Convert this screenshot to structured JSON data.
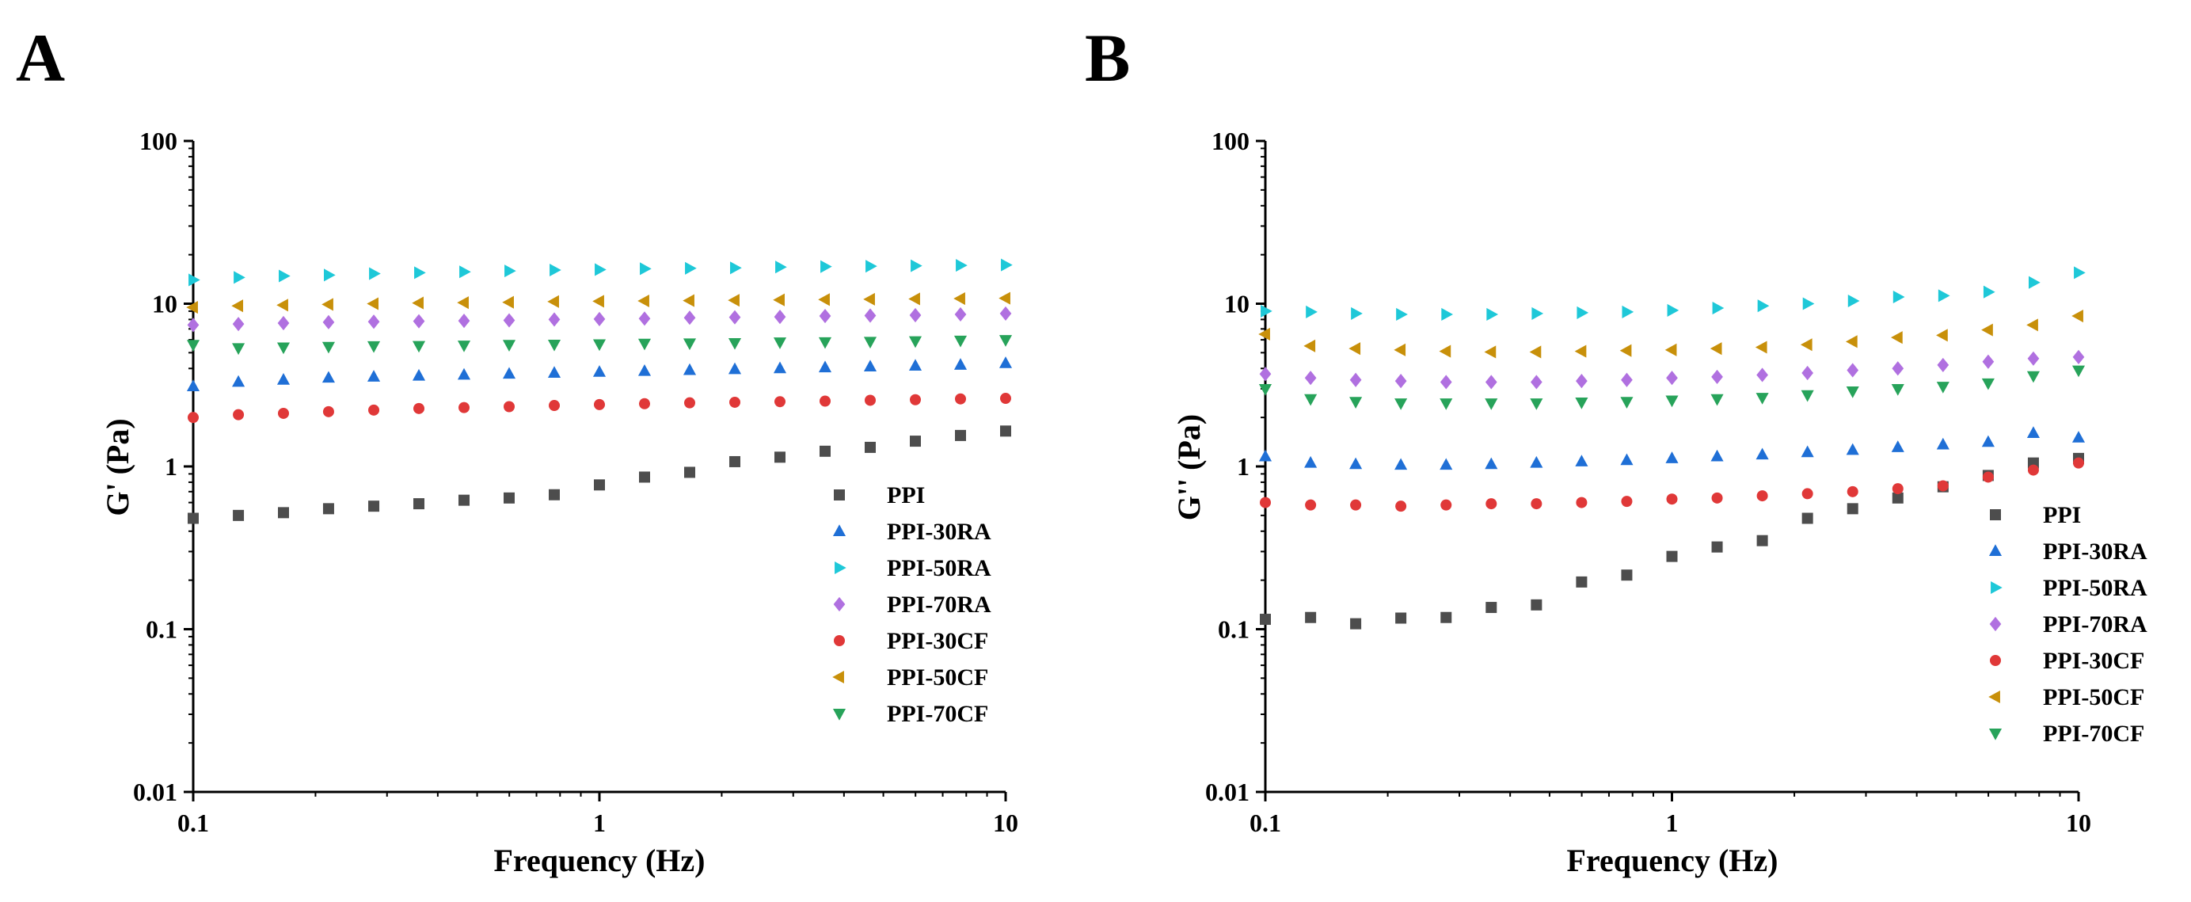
{
  "chart_data": [
    {
      "panel": "A",
      "type": "scatter",
      "xlabel": "Frequency (Hz)",
      "ylabel": "G' (Pa)",
      "xscale": "log",
      "yscale": "log",
      "xlim": [
        0.1,
        10
      ],
      "ylim": [
        0.01,
        100
      ],
      "x_ticks": [
        "0.1",
        "1",
        "10"
      ],
      "y_ticks": [
        "0.01",
        "0.1",
        "1",
        "10",
        "100"
      ],
      "legend_position": "bottom-right",
      "x": [
        0.1,
        0.1292,
        0.1668,
        0.2154,
        0.2783,
        0.3594,
        0.4642,
        0.5995,
        0.7743,
        1.0,
        1.2915,
        1.6681,
        2.1544,
        2.7826,
        3.5938,
        4.6416,
        5.9948,
        7.7426,
        10.0
      ],
      "series": [
        {
          "name": "PPI",
          "marker": "square",
          "color": "#4d4d4d",
          "values": [
            0.48,
            0.5,
            0.52,
            0.55,
            0.57,
            0.59,
            0.62,
            0.64,
            0.67,
            0.77,
            0.86,
            0.92,
            1.07,
            1.14,
            1.24,
            1.31,
            1.43,
            1.55,
            1.65
          ]
        },
        {
          "name": "PPI-30RA",
          "marker": "triangle-up",
          "color": "#1f6fd6",
          "values": [
            3.1,
            3.3,
            3.4,
            3.5,
            3.55,
            3.6,
            3.65,
            3.7,
            3.75,
            3.8,
            3.85,
            3.9,
            3.95,
            4.0,
            4.05,
            4.1,
            4.15,
            4.2,
            4.3
          ]
        },
        {
          "name": "PPI-50RA",
          "marker": "triangle-right",
          "color": "#1ec8d8",
          "values": [
            14.0,
            14.5,
            14.8,
            15.0,
            15.3,
            15.5,
            15.7,
            15.9,
            16.1,
            16.2,
            16.4,
            16.5,
            16.6,
            16.8,
            16.9,
            17.0,
            17.1,
            17.2,
            17.3
          ]
        },
        {
          "name": "PPI-70RA",
          "marker": "diamond",
          "color": "#b070e0",
          "values": [
            7.4,
            7.5,
            7.6,
            7.7,
            7.75,
            7.8,
            7.85,
            7.9,
            8.0,
            8.05,
            8.1,
            8.2,
            8.25,
            8.3,
            8.4,
            8.45,
            8.5,
            8.6,
            8.7
          ]
        },
        {
          "name": "PPI-30CF",
          "marker": "circle",
          "color": "#e03838",
          "values": [
            2.0,
            2.08,
            2.12,
            2.17,
            2.22,
            2.27,
            2.3,
            2.33,
            2.37,
            2.4,
            2.43,
            2.46,
            2.48,
            2.5,
            2.52,
            2.55,
            2.57,
            2.6,
            2.62
          ]
        },
        {
          "name": "PPI-50CF",
          "marker": "triangle-left",
          "color": "#c8900a",
          "values": [
            9.5,
            9.7,
            9.8,
            9.9,
            10.0,
            10.1,
            10.15,
            10.2,
            10.3,
            10.35,
            10.4,
            10.45,
            10.5,
            10.55,
            10.6,
            10.65,
            10.7,
            10.75,
            10.8
          ]
        },
        {
          "name": "PPI-70CF",
          "marker": "triangle-down",
          "color": "#27a35a",
          "values": [
            5.6,
            5.35,
            5.4,
            5.45,
            5.5,
            5.52,
            5.55,
            5.6,
            5.62,
            5.65,
            5.7,
            5.72,
            5.75,
            5.8,
            5.82,
            5.85,
            5.9,
            5.95,
            6.0
          ]
        }
      ]
    },
    {
      "panel": "B",
      "type": "scatter",
      "xlabel": "Frequency (Hz)",
      "ylabel": "G'' (Pa)",
      "xscale": "log",
      "yscale": "log",
      "xlim": [
        0.1,
        10
      ],
      "ylim": [
        0.01,
        100
      ],
      "x_ticks": [
        "0.1",
        "1",
        "10"
      ],
      "y_ticks": [
        "0.01",
        "0.1",
        "1",
        "10",
        "100"
      ],
      "legend_position": "bottom-right",
      "x": [
        0.1,
        0.1292,
        0.1668,
        0.2154,
        0.2783,
        0.3594,
        0.4642,
        0.5995,
        0.7743,
        1.0,
        1.2915,
        1.6681,
        2.1544,
        2.7826,
        3.5938,
        4.6416,
        5.9948,
        7.7426,
        10.0
      ],
      "series": [
        {
          "name": "PPI",
          "marker": "square",
          "color": "#4d4d4d",
          "values": [
            0.115,
            0.118,
            0.108,
            0.117,
            0.118,
            0.136,
            0.141,
            0.195,
            0.215,
            0.28,
            0.32,
            0.35,
            0.48,
            0.55,
            0.64,
            0.75,
            0.88,
            1.05,
            1.12
          ]
        },
        {
          "name": "PPI-30RA",
          "marker": "triangle-up",
          "color": "#1f6fd6",
          "values": [
            1.15,
            1.05,
            1.03,
            1.02,
            1.02,
            1.03,
            1.05,
            1.07,
            1.09,
            1.12,
            1.15,
            1.18,
            1.22,
            1.26,
            1.31,
            1.36,
            1.41,
            1.6,
            1.5
          ]
        },
        {
          "name": "PPI-50RA",
          "marker": "triangle-right",
          "color": "#1ec8d8",
          "values": [
            9.0,
            8.9,
            8.7,
            8.6,
            8.6,
            8.6,
            8.7,
            8.8,
            8.9,
            9.1,
            9.4,
            9.7,
            10.0,
            10.4,
            11.0,
            11.2,
            11.8,
            13.5,
            15.5
          ]
        },
        {
          "name": "PPI-70RA",
          "marker": "diamond",
          "color": "#b070e0",
          "values": [
            3.7,
            3.5,
            3.4,
            3.35,
            3.3,
            3.3,
            3.3,
            3.35,
            3.4,
            3.5,
            3.55,
            3.65,
            3.75,
            3.9,
            4.0,
            4.2,
            4.4,
            4.6,
            4.7
          ]
        },
        {
          "name": "PPI-30CF",
          "marker": "circle",
          "color": "#e03838",
          "values": [
            0.6,
            0.58,
            0.58,
            0.57,
            0.58,
            0.59,
            0.59,
            0.6,
            0.61,
            0.63,
            0.64,
            0.66,
            0.68,
            0.7,
            0.73,
            0.76,
            0.86,
            0.95,
            1.05
          ]
        },
        {
          "name": "PPI-50CF",
          "marker": "triangle-left",
          "color": "#c8900a",
          "values": [
            6.5,
            5.5,
            5.3,
            5.2,
            5.1,
            5.05,
            5.05,
            5.1,
            5.15,
            5.2,
            5.3,
            5.4,
            5.6,
            5.85,
            6.2,
            6.4,
            6.9,
            7.4,
            8.4
          ]
        },
        {
          "name": "PPI-70CF",
          "marker": "triangle-down",
          "color": "#27a35a",
          "values": [
            3.0,
            2.6,
            2.5,
            2.45,
            2.45,
            2.45,
            2.45,
            2.48,
            2.5,
            2.55,
            2.6,
            2.65,
            2.75,
            2.9,
            3.0,
            3.1,
            3.25,
            3.6,
            3.9
          ]
        }
      ]
    }
  ]
}
